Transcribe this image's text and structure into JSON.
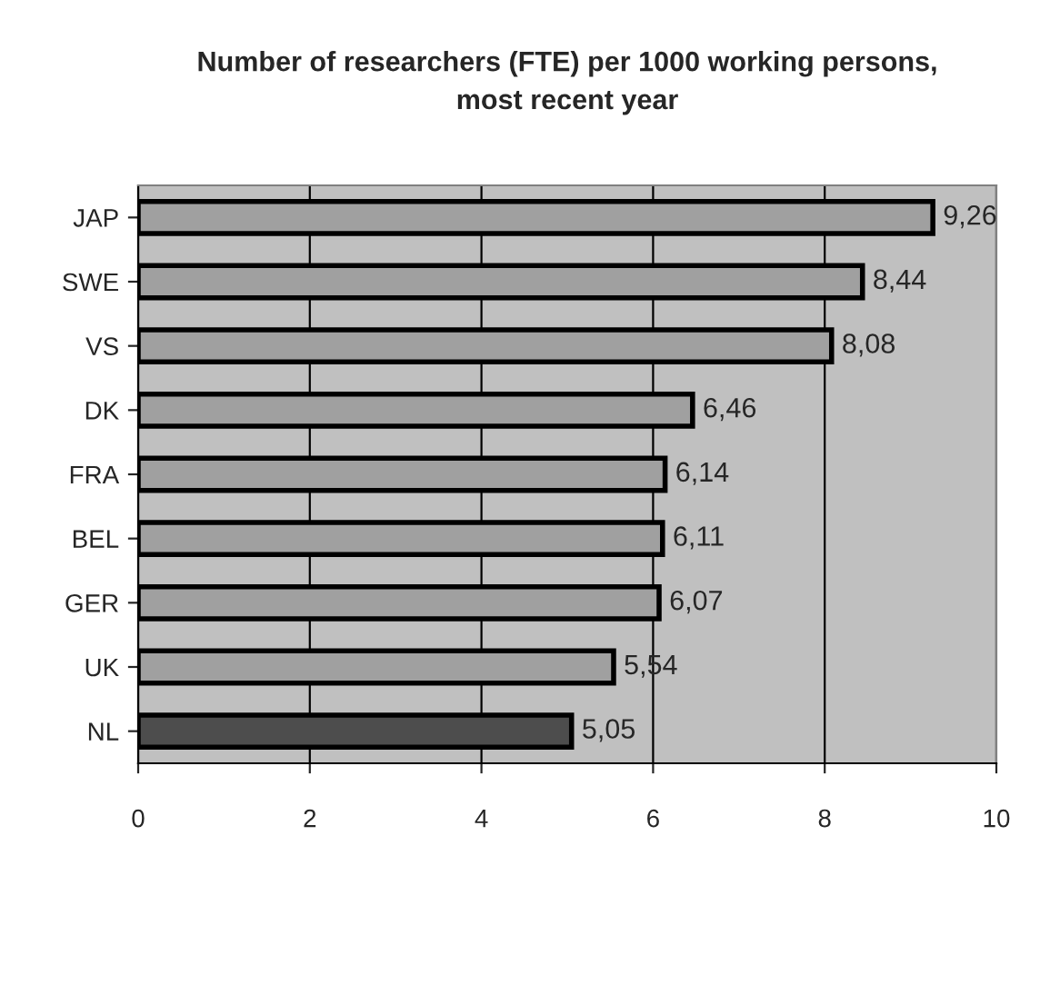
{
  "chart_data": {
    "type": "bar",
    "orientation": "horizontal",
    "title": "Number of researchers (FTE) per 1000 working persons,\nmost recent year",
    "categories": [
      "JAP",
      "SWE",
      "VS",
      "DK",
      "FRA",
      "BEL",
      "GER",
      "UK",
      "NL"
    ],
    "values": [
      9.26,
      8.44,
      8.08,
      6.46,
      6.14,
      6.11,
      6.07,
      5.54,
      5.05
    ],
    "value_labels": [
      "9,26",
      "8,44",
      "8,08",
      "6,46",
      "6,14",
      "6,11",
      "6,07",
      "5,54",
      "5,05"
    ],
    "colors": [
      "#a0a0a0",
      "#a0a0a0",
      "#a0a0a0",
      "#a0a0a0",
      "#a0a0a0",
      "#a0a0a0",
      "#a0a0a0",
      "#a0a0a0",
      "#4d4d4d"
    ],
    "xlim": [
      0,
      10
    ],
    "xticks": [
      0,
      2,
      4,
      6,
      8,
      10
    ],
    "grid": "x"
  }
}
